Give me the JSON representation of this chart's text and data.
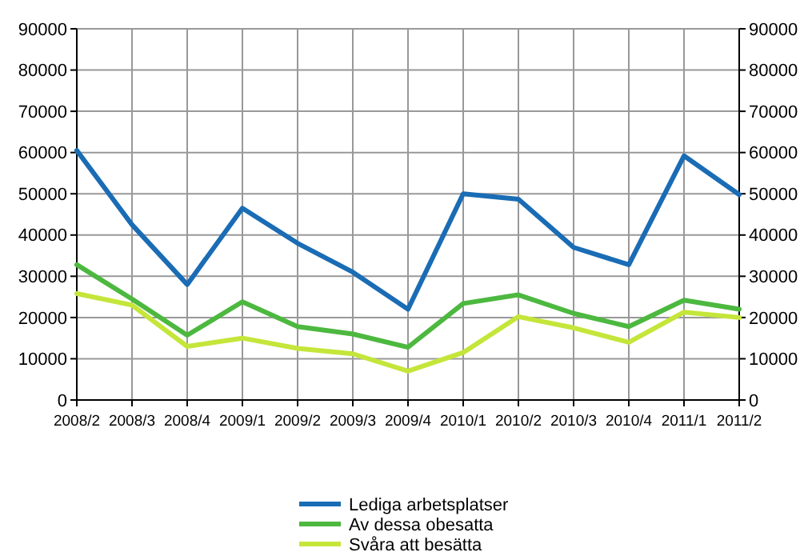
{
  "chart_data": {
    "type": "line",
    "categories": [
      "2008/2",
      "2008/3",
      "2008/4",
      "2009/1",
      "2009/2",
      "2009/3",
      "2009/4",
      "2010/1",
      "2010/2",
      "2010/3",
      "2010/4",
      "2011/1",
      "2011/2"
    ],
    "series": [
      {
        "name": "Lediga arbetsplatser",
        "color": "#1a6cb5",
        "values": [
          60500,
          42500,
          28000,
          46500,
          38000,
          31000,
          22000,
          50000,
          48700,
          37000,
          32800,
          59200,
          49800
        ]
      },
      {
        "name": "Av dessa obesatta",
        "color": "#4cb83f",
        "values": [
          32800,
          24500,
          15700,
          23800,
          17800,
          16000,
          12800,
          23400,
          25500,
          21000,
          17800,
          24200,
          22000
        ]
      },
      {
        "name": "Svåra att besätta",
        "color": "#c4e63a",
        "values": [
          25800,
          23000,
          13000,
          15000,
          12500,
          11200,
          7000,
          11500,
          20200,
          17500,
          14000,
          21300,
          20000
        ]
      }
    ],
    "ylim": [
      0,
      90000
    ],
    "yticks": [
      0,
      10000,
      20000,
      30000,
      40000,
      50000,
      60000,
      70000,
      80000,
      90000
    ],
    "y2lim": [
      0,
      90000
    ],
    "y2ticks": [
      0,
      10000,
      20000,
      30000,
      40000,
      50000,
      60000,
      70000,
      80000,
      90000
    ],
    "grid": true,
    "legend": "bottom",
    "marker": "none",
    "line_style": "solid"
  }
}
